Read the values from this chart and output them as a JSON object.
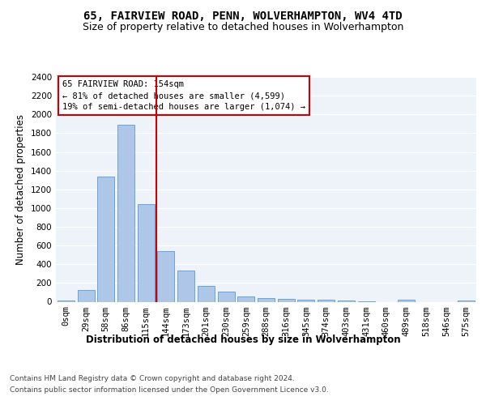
{
  "title1": "65, FAIRVIEW ROAD, PENN, WOLVERHAMPTON, WV4 4TD",
  "title2": "Size of property relative to detached houses in Wolverhampton",
  "xlabel": "Distribution of detached houses by size in Wolverhampton",
  "ylabel": "Number of detached properties",
  "categories": [
    "0sqm",
    "29sqm",
    "58sqm",
    "86sqm",
    "115sqm",
    "144sqm",
    "173sqm",
    "201sqm",
    "230sqm",
    "259sqm",
    "288sqm",
    "316sqm",
    "345sqm",
    "374sqm",
    "403sqm",
    "431sqm",
    "460sqm",
    "489sqm",
    "518sqm",
    "546sqm",
    "575sqm"
  ],
  "values": [
    10,
    125,
    1340,
    1890,
    1040,
    540,
    335,
    165,
    110,
    60,
    38,
    30,
    25,
    20,
    15,
    8,
    0,
    20,
    0,
    0,
    10
  ],
  "bar_color": "#aec6e8",
  "bar_edge_color": "#5b9bd5",
  "background_color": "#eef2f9",
  "vline_color": "#cc0000",
  "annotation_text": "65 FAIRVIEW ROAD: 154sqm\n← 81% of detached houses are smaller (4,599)\n19% of semi-detached houses are larger (1,074) →",
  "annotation_box_color": "#ffffff",
  "annotation_box_edge": "#cc0000",
  "ylim": [
    0,
    2400
  ],
  "yticks": [
    0,
    200,
    400,
    600,
    800,
    1000,
    1200,
    1400,
    1600,
    1800,
    2000,
    2200,
    2400
  ],
  "footer1": "Contains HM Land Registry data © Crown copyright and database right 2024.",
  "footer2": "Contains public sector information licensed under the Open Government Licence v3.0.",
  "title_fontsize": 10,
  "subtitle_fontsize": 9,
  "axis_label_fontsize": 8.5,
  "tick_fontsize": 7.5,
  "annotation_fontsize": 7.5,
  "footer_fontsize": 6.5
}
